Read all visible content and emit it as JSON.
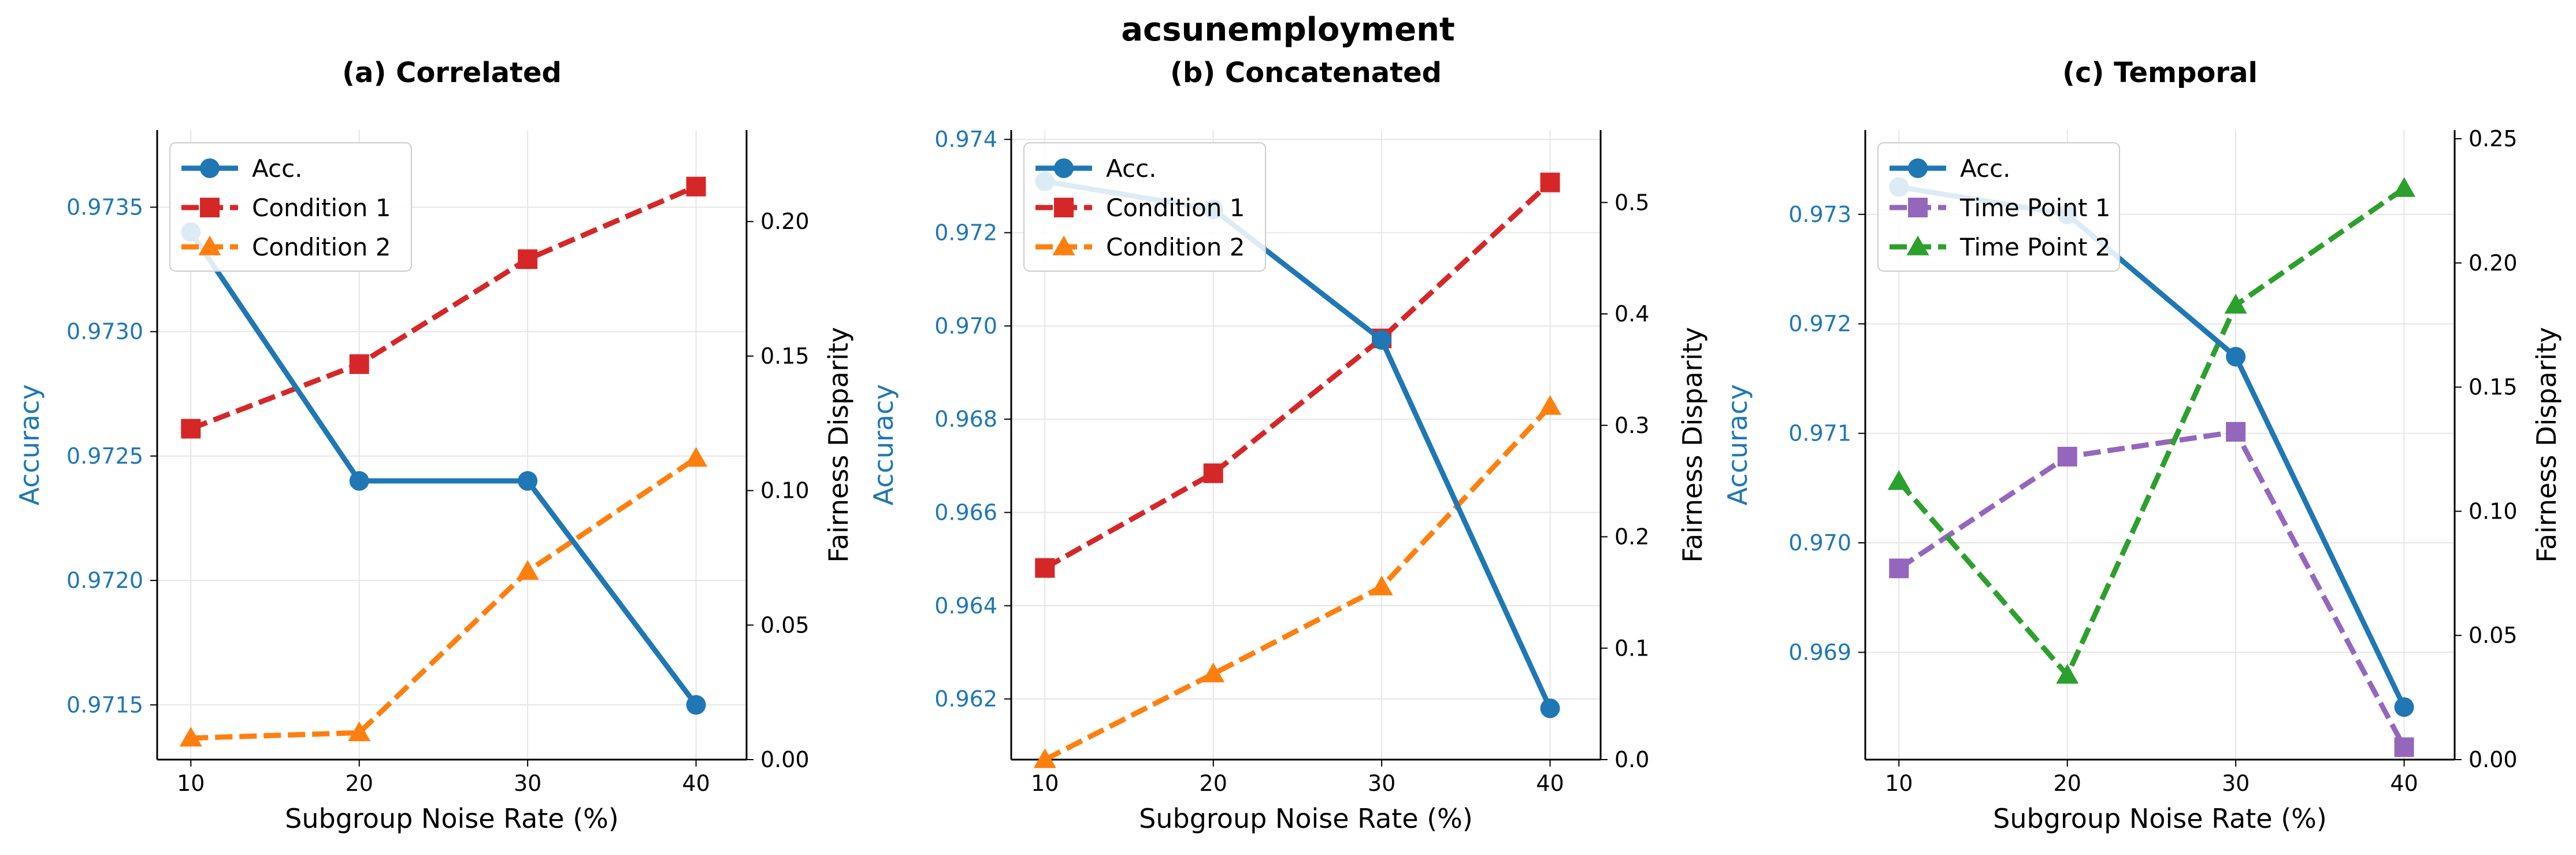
{
  "figure_title": "acsunemployment",
  "chart_data": [
    {
      "type": "line",
      "title": "(a) Correlated",
      "xlabel": "Subgroup Noise Rate (%)",
      "ylabel_left": "Accuracy",
      "ylabel_right": "Fairness Disparity",
      "x": [
        10,
        20,
        30,
        40
      ],
      "xticks": [
        "10",
        "20",
        "30",
        "40"
      ],
      "xlim": [
        8,
        43
      ],
      "ylim_left": [
        0.97128,
        0.97381
      ],
      "yticks_left": [
        "0.9715",
        "0.9720",
        "0.9725",
        "0.9730",
        "0.9735"
      ],
      "ylim_right": [
        0.0,
        0.234
      ],
      "yticks_right": [
        "0.00",
        "0.05",
        "0.10",
        "0.15",
        "0.20"
      ],
      "grid": true,
      "legend_position": "upper-left",
      "series": [
        {
          "name": "Acc.",
          "axis": "left",
          "values": [
            0.9734,
            0.9724,
            0.9724,
            0.9715
          ],
          "color": "#1f77b4",
          "marker": "circle",
          "dash": "solid"
        },
        {
          "name": "Condition 1",
          "axis": "right",
          "values": [
            0.123,
            0.147,
            0.186,
            0.213
          ],
          "color": "#d62728",
          "marker": "square",
          "dash": "dashed"
        },
        {
          "name": "Condition 2",
          "axis": "right",
          "values": [
            0.008,
            0.01,
            0.07,
            0.112
          ],
          "color": "#ff7f0e",
          "marker": "triangle",
          "dash": "dashed"
        }
      ]
    },
    {
      "type": "line",
      "title": "(b) Concatenated",
      "xlabel": "Subgroup Noise Rate (%)",
      "ylabel_left": "Accuracy",
      "ylabel_right": "Fairness Disparity",
      "x": [
        10,
        20,
        30,
        40
      ],
      "xticks": [
        "10",
        "20",
        "30",
        "40"
      ],
      "xlim": [
        8,
        43
      ],
      "ylim_left": [
        0.9607,
        0.9742
      ],
      "yticks_left": [
        "0.962",
        "0.964",
        "0.966",
        "0.968",
        "0.970",
        "0.972",
        "0.974"
      ],
      "ylim_right": [
        0.0,
        0.565
      ],
      "yticks_right": [
        "0.0",
        "0.1",
        "0.2",
        "0.3",
        "0.4",
        "0.5"
      ],
      "grid": true,
      "legend_position": "upper-left",
      "series": [
        {
          "name": "Acc.",
          "axis": "left",
          "values": [
            0.9731,
            0.9725,
            0.9697,
            0.9618
          ],
          "color": "#1f77b4",
          "marker": "circle",
          "dash": "solid"
        },
        {
          "name": "Condition 1",
          "axis": "right",
          "values": [
            0.172,
            0.257,
            0.378,
            0.518
          ],
          "color": "#d62728",
          "marker": "square",
          "dash": "dashed"
        },
        {
          "name": "Condition 2",
          "axis": "right",
          "values": [
            0.0,
            0.077,
            0.155,
            0.317
          ],
          "color": "#ff7f0e",
          "marker": "triangle",
          "dash": "dashed"
        }
      ]
    },
    {
      "type": "line",
      "title": "(c) Temporal",
      "xlabel": "Subgroup Noise Rate (%)",
      "ylabel_left": "Accuracy",
      "ylabel_right": "Fairness Disparity",
      "x": [
        10,
        20,
        30,
        40
      ],
      "xticks": [
        "10",
        "20",
        "30",
        "40"
      ],
      "xlim": [
        8,
        43
      ],
      "ylim_left": [
        0.96802,
        0.97377
      ],
      "yticks_left": [
        "0.969",
        "0.970",
        "0.971",
        "0.972",
        "0.973"
      ],
      "ylim_right": [
        0.0,
        0.2535
      ],
      "yticks_right": [
        "0.00",
        "0.05",
        "0.10",
        "0.15",
        "0.20",
        "0.25"
      ],
      "grid": true,
      "legend_position": "upper-left",
      "series": [
        {
          "name": "Acc.",
          "axis": "left",
          "values": [
            0.97325,
            0.973,
            0.9717,
            0.9685
          ],
          "color": "#1f77b4",
          "marker": "circle",
          "dash": "solid"
        },
        {
          "name": "Time Point 1",
          "axis": "right",
          "values": [
            0.077,
            0.122,
            0.132,
            0.005
          ],
          "color": "#9467bd",
          "marker": "square",
          "dash": "dashed"
        },
        {
          "name": "Time Point 2",
          "axis": "right",
          "values": [
            0.112,
            0.034,
            0.183,
            0.23
          ],
          "color": "#2ca02c",
          "marker": "triangle",
          "dash": "dashed"
        }
      ]
    }
  ]
}
